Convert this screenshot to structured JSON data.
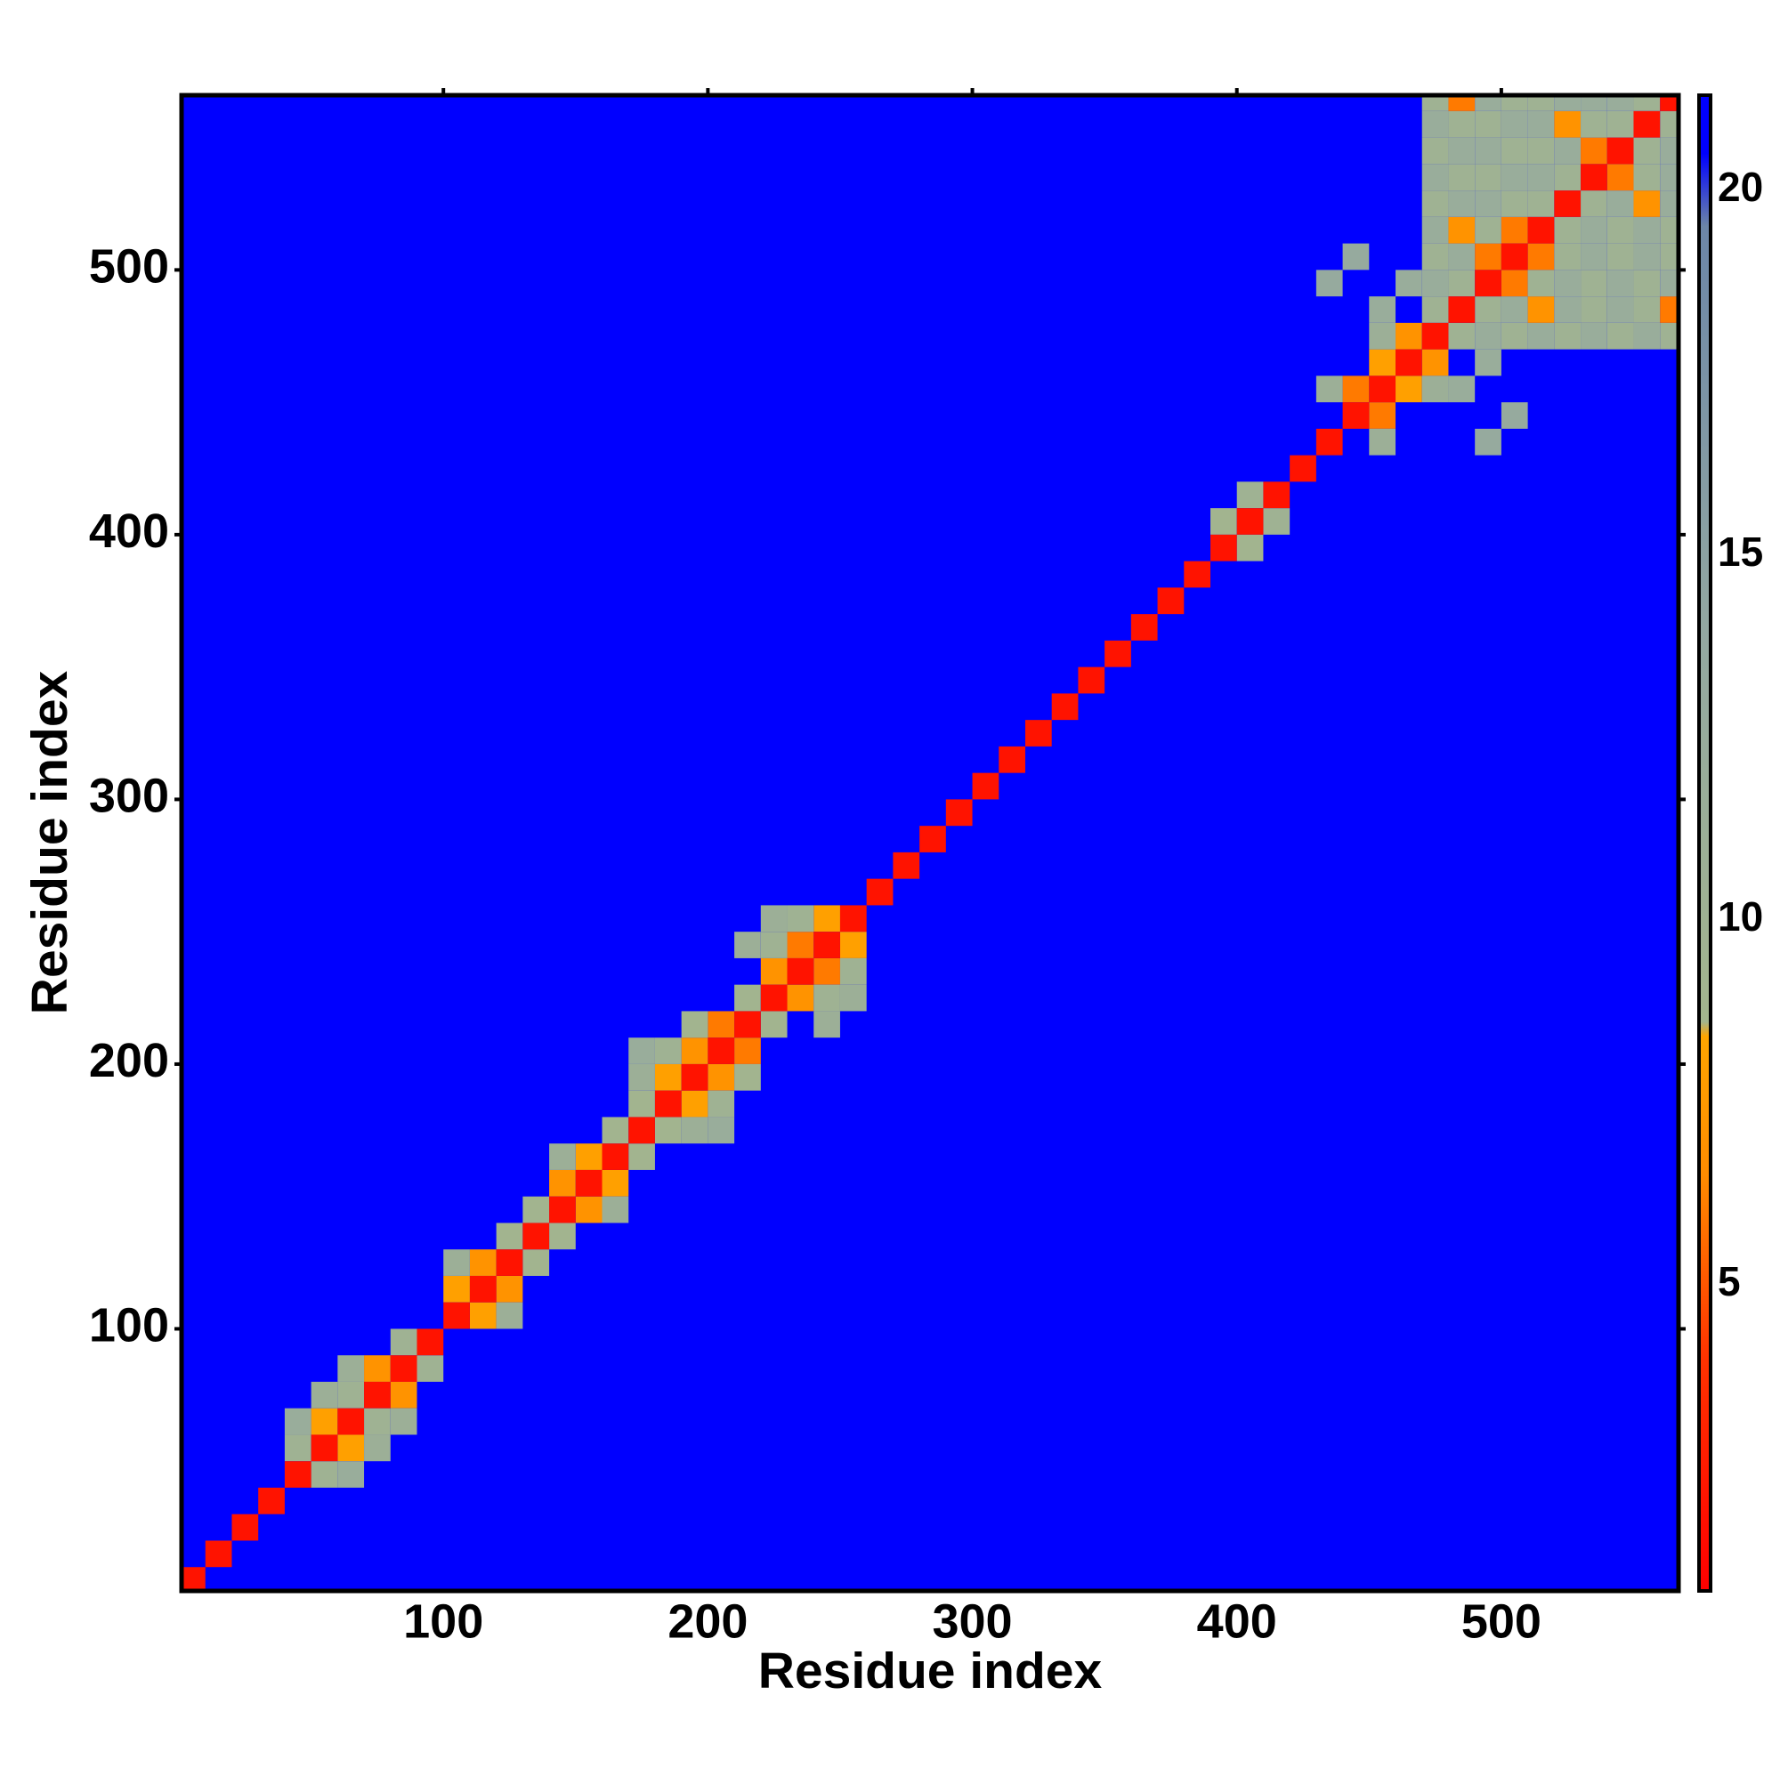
{
  "chart_data": {
    "type": "heatmap",
    "x_label": "Residue index",
    "y_label": "Residue index",
    "xlim": [
      1,
      567
    ],
    "ylim": [
      1,
      566
    ],
    "xticks": [
      100,
      200,
      300,
      400,
      500
    ],
    "yticks": [
      100,
      200,
      300,
      400,
      500
    ],
    "clim": [
      0.8,
      21.3
    ],
    "cticks": [
      5,
      10,
      15,
      20
    ],
    "colorscale": [
      [
        0.8,
        "#ff0000"
      ],
      [
        4,
        "#ff3300"
      ],
      [
        6.5,
        "#ff8c00"
      ],
      [
        8.4,
        "#ffa500"
      ],
      [
        8.6,
        "#a3b58e"
      ],
      [
        14,
        "#93a8a2"
      ],
      [
        19.5,
        "#6c86a8"
      ],
      [
        20.5,
        "#0000ff"
      ],
      [
        21.3,
        "#0000ff"
      ]
    ],
    "background_value": 21,
    "symmetric": true,
    "cells": [
      [
        40,
        50,
        10
      ],
      [
        50,
        60,
        8
      ],
      [
        60,
        70,
        10
      ],
      [
        70,
        80,
        7
      ],
      [
        60,
        80,
        11
      ],
      [
        80,
        90,
        10
      ],
      [
        50,
        70,
        11
      ],
      [
        40,
        60,
        12
      ],
      [
        100,
        110,
        8
      ],
      [
        110,
        120,
        7
      ],
      [
        120,
        130,
        9
      ],
      [
        100,
        120,
        11
      ],
      [
        130,
        140,
        9
      ],
      [
        140,
        150,
        7
      ],
      [
        150,
        160,
        8
      ],
      [
        160,
        170,
        9
      ],
      [
        140,
        160,
        11
      ],
      [
        170,
        180,
        9
      ],
      [
        180,
        190,
        8
      ],
      [
        190,
        200,
        7
      ],
      [
        200,
        210,
        6
      ],
      [
        170,
        190,
        11
      ],
      [
        180,
        200,
        10
      ],
      [
        190,
        210,
        9
      ],
      [
        170,
        200,
        12
      ],
      [
        210,
        220,
        9
      ],
      [
        220,
        230,
        7
      ],
      [
        230,
        240,
        6
      ],
      [
        240,
        250,
        8
      ],
      [
        220,
        240,
        10
      ],
      [
        230,
        250,
        10
      ],
      [
        210,
        240,
        11
      ],
      [
        220,
        250,
        11
      ],
      [
        390,
        400,
        9
      ],
      [
        400,
        410,
        10
      ],
      [
        440,
        450,
        6
      ],
      [
        450,
        460,
        8
      ],
      [
        460,
        470,
        7
      ],
      [
        430,
        450,
        11
      ],
      [
        450,
        470,
        11
      ],
      [
        430,
        490,
        13
      ],
      [
        440,
        500,
        13
      ],
      [
        450,
        480,
        12
      ],
      [
        460,
        490,
        12
      ],
      [
        470,
        480,
        10
      ],
      [
        470,
        490,
        12
      ],
      [
        470,
        500,
        10
      ],
      [
        470,
        510,
        12
      ],
      [
        470,
        520,
        10
      ],
      [
        470,
        530,
        12
      ],
      [
        470,
        540,
        10
      ],
      [
        470,
        550,
        12
      ],
      [
        470,
        560,
        10
      ],
      [
        480,
        490,
        10
      ],
      [
        480,
        500,
        12
      ],
      [
        480,
        510,
        7
      ],
      [
        480,
        520,
        12
      ],
      [
        480,
        530,
        10
      ],
      [
        480,
        540,
        12
      ],
      [
        480,
        550,
        10
      ],
      [
        480,
        560,
        6
      ],
      [
        490,
        500,
        6
      ],
      [
        490,
        510,
        10
      ],
      [
        490,
        520,
        12
      ],
      [
        490,
        530,
        10
      ],
      [
        490,
        540,
        12
      ],
      [
        490,
        550,
        10
      ],
      [
        490,
        560,
        12
      ],
      [
        500,
        510,
        6
      ],
      [
        500,
        520,
        10
      ],
      [
        500,
        530,
        12
      ],
      [
        500,
        540,
        10
      ],
      [
        500,
        550,
        12
      ],
      [
        500,
        560,
        10
      ],
      [
        510,
        520,
        10
      ],
      [
        510,
        530,
        12
      ],
      [
        510,
        540,
        10
      ],
      [
        510,
        550,
        12
      ],
      [
        510,
        560,
        10
      ],
      [
        520,
        530,
        10
      ],
      [
        520,
        540,
        12
      ],
      [
        520,
        550,
        7
      ],
      [
        520,
        560,
        12
      ],
      [
        530,
        540,
        6
      ],
      [
        530,
        550,
        10
      ],
      [
        530,
        560,
        12
      ],
      [
        540,
        550,
        10
      ],
      [
        540,
        560,
        12
      ],
      [
        550,
        560,
        10
      ],
      [
        0,
        0,
        2
      ],
      [
        10,
        10,
        2
      ],
      [
        20,
        20,
        2
      ],
      [
        30,
        30,
        2
      ],
      [
        40,
        40,
        2
      ],
      [
        50,
        50,
        2
      ],
      [
        60,
        60,
        2
      ],
      [
        70,
        70,
        2
      ],
      [
        80,
        80,
        2
      ],
      [
        90,
        90,
        2
      ],
      [
        100,
        100,
        2
      ],
      [
        110,
        110,
        2
      ],
      [
        120,
        120,
        2
      ],
      [
        130,
        130,
        2
      ],
      [
        140,
        140,
        2
      ],
      [
        150,
        150,
        2
      ],
      [
        160,
        160,
        2
      ],
      [
        170,
        170,
        2
      ],
      [
        180,
        180,
        2
      ],
      [
        190,
        190,
        2
      ],
      [
        200,
        200,
        2
      ],
      [
        210,
        210,
        2
      ],
      [
        220,
        220,
        2
      ],
      [
        230,
        230,
        2
      ],
      [
        240,
        240,
        2
      ],
      [
        250,
        250,
        2
      ],
      [
        260,
        260,
        2
      ],
      [
        270,
        270,
        2
      ],
      [
        280,
        280,
        2
      ],
      [
        290,
        290,
        2
      ],
      [
        300,
        300,
        2
      ],
      [
        310,
        310,
        2
      ],
      [
        320,
        320,
        2
      ],
      [
        330,
        330,
        2
      ],
      [
        340,
        340,
        2
      ],
      [
        350,
        350,
        2
      ],
      [
        360,
        360,
        2
      ],
      [
        370,
        370,
        2
      ],
      [
        380,
        380,
        2
      ],
      [
        390,
        390,
        2
      ],
      [
        400,
        400,
        2
      ],
      [
        410,
        410,
        2
      ],
      [
        420,
        420,
        2
      ],
      [
        430,
        430,
        2
      ],
      [
        440,
        440,
        2
      ],
      [
        450,
        450,
        2
      ],
      [
        460,
        460,
        2
      ],
      [
        470,
        470,
        2
      ],
      [
        480,
        480,
        2
      ],
      [
        490,
        490,
        2
      ],
      [
        500,
        500,
        2
      ],
      [
        510,
        510,
        2
      ],
      [
        520,
        520,
        2
      ],
      [
        530,
        530,
        2
      ],
      [
        540,
        540,
        2
      ],
      [
        550,
        550,
        2
      ],
      [
        560,
        560,
        2
      ]
    ]
  }
}
